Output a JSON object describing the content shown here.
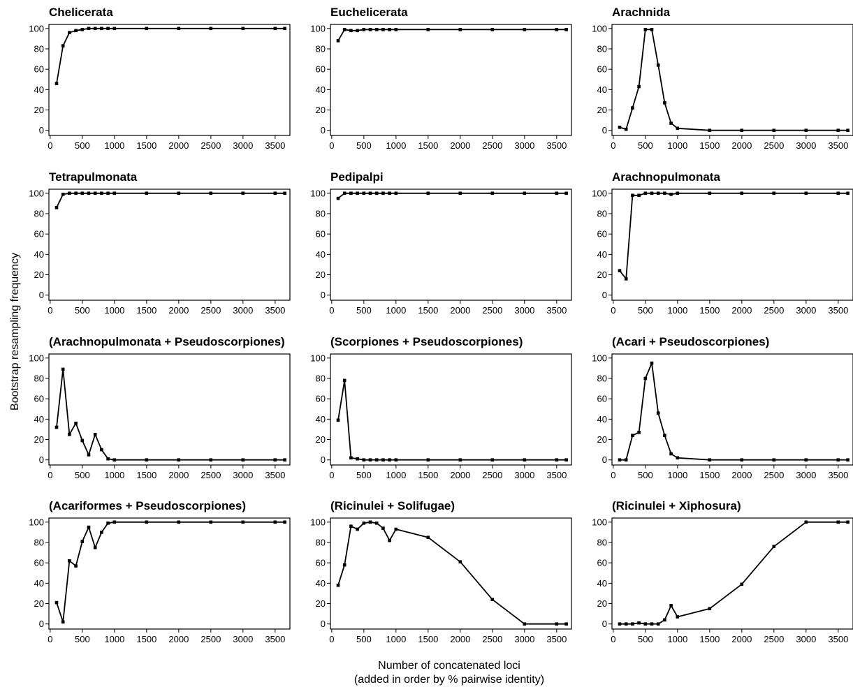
{
  "figure": {
    "ylabel": "Bootstrap resampling frequency",
    "xlabel_line1": "Number of concatenated loci",
    "xlabel_line2": "(added in order by % pairwise identity)"
  },
  "chart_data": [
    {
      "type": "line",
      "title": "Chelicerata",
      "x": [
        100,
        200,
        300,
        400,
        500,
        600,
        700,
        800,
        900,
        1000,
        1500,
        2000,
        2500,
        3000,
        3500,
        3650
      ],
      "y": [
        46,
        83,
        96,
        98,
        99,
        100,
        100,
        100,
        100,
        100,
        100,
        100,
        100,
        100,
        100,
        100
      ],
      "xticks": [
        0,
        500,
        1000,
        1500,
        2000,
        2500,
        3000,
        3500
      ],
      "yticks": [
        0,
        20,
        40,
        60,
        80,
        100
      ],
      "xlim": [
        -20,
        3730
      ],
      "ylim": [
        -5,
        104
      ]
    },
    {
      "type": "line",
      "title": "Euchelicerata",
      "x": [
        100,
        200,
        300,
        400,
        500,
        600,
        700,
        800,
        900,
        1000,
        1500,
        2000,
        2500,
        3000,
        3500,
        3650
      ],
      "y": [
        88,
        99,
        98,
        98,
        99,
        99,
        99,
        99,
        99,
        99,
        99,
        99,
        99,
        99,
        99,
        99
      ],
      "xticks": [
        0,
        500,
        1000,
        1500,
        2000,
        2500,
        3000,
        3500
      ],
      "yticks": [
        0,
        20,
        40,
        60,
        80,
        100
      ],
      "xlim": [
        -20,
        3730
      ],
      "ylim": [
        -5,
        104
      ]
    },
    {
      "type": "line",
      "title": "Arachnida",
      "x": [
        100,
        200,
        300,
        400,
        500,
        600,
        700,
        800,
        900,
        1000,
        1500,
        2000,
        2500,
        3000,
        3500,
        3650
      ],
      "y": [
        3,
        1,
        22,
        43,
        99,
        99,
        64,
        27,
        7,
        2,
        0,
        0,
        0,
        0,
        0,
        0
      ],
      "xticks": [
        0,
        500,
        1000,
        1500,
        2000,
        2500,
        3000,
        3500
      ],
      "yticks": [
        0,
        20,
        40,
        60,
        80,
        100
      ],
      "xlim": [
        -20,
        3730
      ],
      "ylim": [
        -5,
        104
      ]
    },
    {
      "type": "line",
      "title": "Tetrapulmonata",
      "x": [
        100,
        200,
        300,
        400,
        500,
        600,
        700,
        800,
        900,
        1000,
        1500,
        2000,
        2500,
        3000,
        3500,
        3650
      ],
      "y": [
        86,
        99,
        100,
        100,
        100,
        100,
        100,
        100,
        100,
        100,
        100,
        100,
        100,
        100,
        100,
        100
      ],
      "xticks": [
        0,
        500,
        1000,
        1500,
        2000,
        2500,
        3000,
        3500
      ],
      "yticks": [
        0,
        20,
        40,
        60,
        80,
        100
      ],
      "xlim": [
        -20,
        3730
      ],
      "ylim": [
        -5,
        104
      ]
    },
    {
      "type": "line",
      "title": "Pedipalpi",
      "x": [
        100,
        200,
        300,
        400,
        500,
        600,
        700,
        800,
        900,
        1000,
        1500,
        2000,
        2500,
        3000,
        3500,
        3650
      ],
      "y": [
        95,
        100,
        100,
        100,
        100,
        100,
        100,
        100,
        100,
        100,
        100,
        100,
        100,
        100,
        100,
        100
      ],
      "xticks": [
        0,
        500,
        1000,
        1500,
        2000,
        2500,
        3000,
        3500
      ],
      "yticks": [
        0,
        20,
        40,
        60,
        80,
        100
      ],
      "xlim": [
        -20,
        3730
      ],
      "ylim": [
        -5,
        104
      ]
    },
    {
      "type": "line",
      "title": "Arachnopulmonata",
      "x": [
        100,
        200,
        300,
        400,
        500,
        600,
        700,
        800,
        900,
        1000,
        1500,
        2000,
        2500,
        3000,
        3500,
        3650
      ],
      "y": [
        24,
        16,
        98,
        98,
        100,
        100,
        100,
        100,
        99,
        100,
        100,
        100,
        100,
        100,
        100,
        100
      ],
      "xticks": [
        0,
        500,
        1000,
        1500,
        2000,
        2500,
        3000,
        3500
      ],
      "yticks": [
        0,
        20,
        40,
        60,
        80,
        100
      ],
      "xlim": [
        -20,
        3730
      ],
      "ylim": [
        -5,
        104
      ]
    },
    {
      "type": "line",
      "title": "(Arachnopulmonata + Pseudoscorpiones)",
      "x": [
        100,
        200,
        300,
        400,
        500,
        600,
        700,
        800,
        900,
        1000,
        1500,
        2000,
        2500,
        3000,
        3500,
        3650
      ],
      "y": [
        32,
        89,
        25,
        36,
        19,
        5,
        25,
        10,
        1,
        0,
        0,
        0,
        0,
        0,
        0,
        0
      ],
      "xticks": [
        0,
        500,
        1000,
        1500,
        2000,
        2500,
        3000,
        3500
      ],
      "yticks": [
        0,
        20,
        40,
        60,
        80,
        100
      ],
      "xlim": [
        -20,
        3730
      ],
      "ylim": [
        -5,
        104
      ]
    },
    {
      "type": "line",
      "title": "(Scorpiones + Pseudoscorpiones)",
      "x": [
        100,
        200,
        300,
        400,
        500,
        600,
        700,
        800,
        900,
        1000,
        1500,
        2000,
        2500,
        3000,
        3500,
        3650
      ],
      "y": [
        39,
        78,
        2,
        1,
        0,
        0,
        0,
        0,
        0,
        0,
        0,
        0,
        0,
        0,
        0,
        0
      ],
      "xticks": [
        0,
        500,
        1000,
        1500,
        2000,
        2500,
        3000,
        3500
      ],
      "yticks": [
        0,
        20,
        40,
        60,
        80,
        100
      ],
      "xlim": [
        -20,
        3730
      ],
      "ylim": [
        -5,
        104
      ]
    },
    {
      "type": "line",
      "title": "(Acari + Pseudoscorpiones)",
      "x": [
        100,
        200,
        300,
        400,
        500,
        600,
        700,
        800,
        900,
        1000,
        1500,
        2000,
        2500,
        3000,
        3500,
        3650
      ],
      "y": [
        0,
        0,
        24,
        27,
        80,
        95,
        46,
        24,
        6,
        2,
        0,
        0,
        0,
        0,
        0,
        0
      ],
      "xticks": [
        0,
        500,
        1000,
        1500,
        2000,
        2500,
        3000,
        3500
      ],
      "yticks": [
        0,
        20,
        40,
        60,
        80,
        100
      ],
      "xlim": [
        -20,
        3730
      ],
      "ylim": [
        -5,
        104
      ]
    },
    {
      "type": "line",
      "title": "(Acariformes + Pseudoscorpiones)",
      "x": [
        100,
        200,
        300,
        400,
        500,
        600,
        700,
        800,
        900,
        1000,
        1500,
        2000,
        2500,
        3000,
        3500,
        3650
      ],
      "y": [
        21,
        2,
        62,
        57,
        81,
        95,
        75,
        90,
        99,
        100,
        100,
        100,
        100,
        100,
        100,
        100
      ],
      "xticks": [
        0,
        500,
        1000,
        1500,
        2000,
        2500,
        3000,
        3500
      ],
      "yticks": [
        0,
        20,
        40,
        60,
        80,
        100
      ],
      "xlim": [
        -20,
        3730
      ],
      "ylim": [
        -5,
        104
      ]
    },
    {
      "type": "line",
      "title": "(Ricinulei + Solifugae)",
      "x": [
        100,
        200,
        300,
        400,
        500,
        600,
        700,
        800,
        900,
        1000,
        1500,
        2000,
        2500,
        3000,
        3500,
        3650
      ],
      "y": [
        38,
        58,
        96,
        93,
        99,
        100,
        99,
        94,
        82,
        93,
        85,
        61,
        24,
        0,
        0,
        0
      ],
      "xticks": [
        0,
        500,
        1000,
        1500,
        2000,
        2500,
        3000,
        3500
      ],
      "yticks": [
        0,
        20,
        40,
        60,
        80,
        100
      ],
      "xlim": [
        -20,
        3730
      ],
      "ylim": [
        -5,
        104
      ]
    },
    {
      "type": "line",
      "title": "(Ricinulei + Xiphosura)",
      "x": [
        100,
        200,
        300,
        400,
        500,
        600,
        700,
        800,
        900,
        1000,
        1500,
        2000,
        2500,
        3000,
        3500,
        3650
      ],
      "y": [
        0,
        0,
        0,
        1,
        0,
        0,
        0,
        4,
        18,
        7,
        15,
        39,
        76,
        100,
        100,
        100
      ],
      "xticks": [
        0,
        500,
        1000,
        1500,
        2000,
        2500,
        3000,
        3500
      ],
      "yticks": [
        0,
        20,
        40,
        60,
        80,
        100
      ],
      "xlim": [
        -20,
        3730
      ],
      "ylim": [
        -5,
        104
      ]
    }
  ]
}
